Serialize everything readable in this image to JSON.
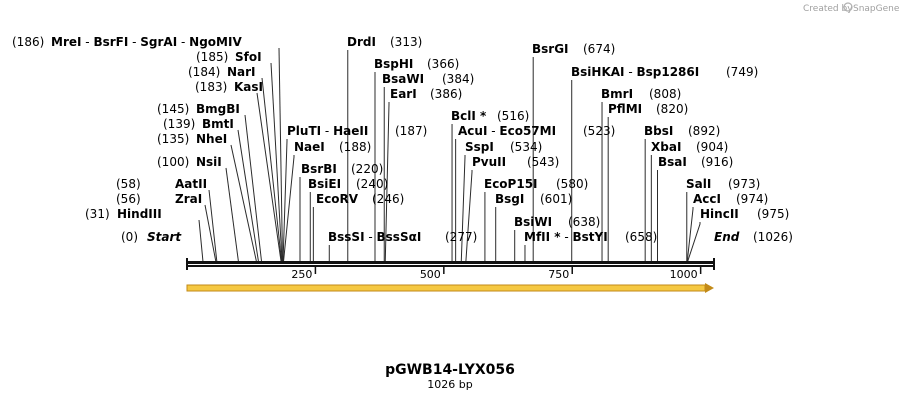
{
  "credit": {
    "prefix": "Created by",
    "brand": "SnapGene"
  },
  "map": {
    "title": "pGWB14-LYX056",
    "length_label": "1026 bp",
    "length": 1026,
    "scale_ticks": [
      250,
      500,
      750,
      1000
    ]
  },
  "feature": {
    "name": "arrow-feature",
    "start": 1,
    "end": 1026,
    "color": "#f5c842",
    "outline": "#c28a18"
  },
  "sites": [
    {
      "text": [
        "MreI",
        "BsrFI",
        "SgrAI",
        "NgoMIV"
      ],
      "pos": "186",
      "at": 186,
      "italic": false
    },
    {
      "text": [
        "SfoI"
      ],
      "pos": "185",
      "at": 185
    },
    {
      "text": [
        "NarI"
      ],
      "pos": "184",
      "at": 184
    },
    {
      "text": [
        "KasI"
      ],
      "pos": "183",
      "at": 183
    },
    {
      "text": [
        "BmgBI"
      ],
      "pos": "145",
      "at": 145
    },
    {
      "text": [
        "BmtI"
      ],
      "pos": "139",
      "at": 139
    },
    {
      "text": [
        "NheI"
      ],
      "pos": "135",
      "at": 135
    },
    {
      "text": [
        "NsiI"
      ],
      "pos": "100",
      "at": 100
    },
    {
      "text": [
        "AatII"
      ],
      "pos": "58",
      "at": 58
    },
    {
      "text": [
        "ZraI"
      ],
      "pos": "56",
      "at": 56
    },
    {
      "text": [
        "HindIII"
      ],
      "pos": "31",
      "at": 31
    },
    {
      "text": [
        "Start"
      ],
      "pos": "0",
      "at": 0,
      "italic": true
    },
    {
      "text": [
        "DrdI"
      ],
      "pos": "313",
      "at": 313
    },
    {
      "text": [
        "BspHI"
      ],
      "pos": "366",
      "at": 366
    },
    {
      "text": [
        "BsaWI"
      ],
      "pos": "384",
      "at": 384
    },
    {
      "text": [
        "EarI"
      ],
      "pos": "386",
      "at": 386
    },
    {
      "text": [
        "PluTI",
        "HaeII"
      ],
      "pos": "187",
      "at": 187
    },
    {
      "text": [
        "NaeI"
      ],
      "pos": "188",
      "at": 188
    },
    {
      "text": [
        "BsrBI"
      ],
      "pos": "220",
      "at": 220
    },
    {
      "text": [
        "BsiEI"
      ],
      "pos": "240",
      "at": 240
    },
    {
      "text": [
        "EcoRV"
      ],
      "pos": "246",
      "at": 246
    },
    {
      "text": [
        "BssSI",
        "BssSαI"
      ],
      "pos": "277",
      "at": 277
    },
    {
      "text": [
        "BsrGI"
      ],
      "pos": "674",
      "at": 674
    },
    {
      "text": [
        "BsiHKAI",
        "Bsp1286I"
      ],
      "pos": "749",
      "at": 749
    },
    {
      "text": [
        "BclI *"
      ],
      "pos": "516",
      "at": 516
    },
    {
      "text": [
        "AcuI",
        "Eco57MI"
      ],
      "pos": "523",
      "at": 523
    },
    {
      "text": [
        "SspI"
      ],
      "pos": "534",
      "at": 534
    },
    {
      "text": [
        "PvuII"
      ],
      "pos": "543",
      "at": 543
    },
    {
      "text": [
        "EcoP15I"
      ],
      "pos": "580",
      "at": 580
    },
    {
      "text": [
        "BsgI"
      ],
      "pos": "601",
      "at": 601
    },
    {
      "text": [
        "BsiWI"
      ],
      "pos": "638",
      "at": 638
    },
    {
      "text": [
        "MfII *",
        "BstYI"
      ],
      "pos": "658",
      "at": 658
    },
    {
      "text": [
        "BmrI"
      ],
      "pos": "808",
      "at": 808
    },
    {
      "text": [
        "PflMI"
      ],
      "pos": "820",
      "at": 820
    },
    {
      "text": [
        "BbsI"
      ],
      "pos": "892",
      "at": 892
    },
    {
      "text": [
        "XbaI"
      ],
      "pos": "904",
      "at": 904
    },
    {
      "text": [
        "BsaI"
      ],
      "pos": "916",
      "at": 916
    },
    {
      "text": [
        "SalI"
      ],
      "pos": "973",
      "at": 973
    },
    {
      "text": [
        "AccI"
      ],
      "pos": "974",
      "at": 974
    },
    {
      "text": [
        "HincII"
      ],
      "pos": "975",
      "at": 975
    },
    {
      "text": [
        "End"
      ],
      "pos": "1026",
      "at": 1026,
      "italic": true
    }
  ]
}
